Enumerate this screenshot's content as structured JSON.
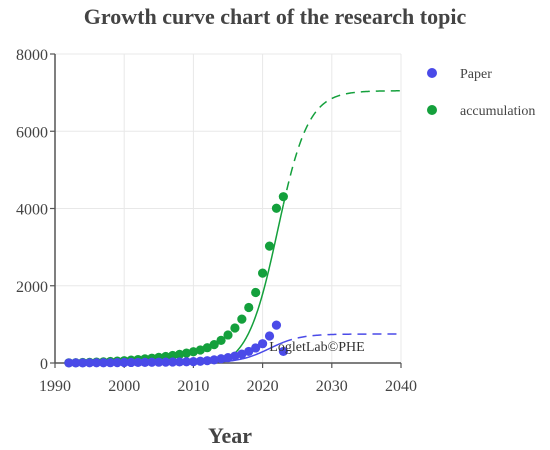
{
  "chart_data": {
    "type": "scatter",
    "title": "Growth curve chart of the research topic",
    "xlabel": "Year",
    "ylabel": "",
    "xlim": [
      1990,
      2040
    ],
    "ylim": [
      0,
      8000
    ],
    "xticks": [
      "1990",
      "2000",
      "2010",
      "2020",
      "2030",
      "2040"
    ],
    "yticks": [
      "0",
      "2000",
      "4000",
      "6000",
      "8000"
    ],
    "grid": true,
    "legend": "top-right",
    "colors": {
      "paper": "#4a4ae8",
      "accumulation": "#14a03c"
    },
    "annotation": "LogletLab©PHE",
    "series": [
      {
        "name": "Paper",
        "x": [
          1992,
          1993,
          1994,
          1995,
          1996,
          1997,
          1998,
          1999,
          2000,
          2001,
          2002,
          2003,
          2004,
          2005,
          2006,
          2007,
          2008,
          2009,
          2010,
          2011,
          2012,
          2013,
          2014,
          2015,
          2016,
          2017,
          2018,
          2019,
          2020,
          2021,
          2022,
          2023
        ],
        "y": [
          2,
          3,
          4,
          5,
          6,
          7,
          8,
          10,
          12,
          14,
          15,
          17,
          19,
          21,
          23,
          26,
          28,
          32,
          36,
          45,
          60,
          80,
          110,
          140,
          180,
          230,
          300,
          390,
          500,
          700,
          980,
          300
        ]
      },
      {
        "name": "accumulation",
        "x": [
          1992,
          1993,
          1994,
          1995,
          1996,
          1997,
          1998,
          1999,
          2000,
          2001,
          2002,
          2003,
          2004,
          2005,
          2006,
          2007,
          2008,
          2009,
          2010,
          2011,
          2012,
          2013,
          2014,
          2015,
          2016,
          2017,
          2018,
          2019,
          2020,
          2021,
          2022,
          2023
        ],
        "y": [
          5,
          8,
          12,
          17,
          23,
          30,
          38,
          48,
          60,
          74,
          89,
          106,
          125,
          146,
          169,
          195,
          223,
          255,
          291,
          336,
          396,
          476,
          586,
          726,
          906,
          1136,
          1436,
          1826,
          2326,
          3026,
          4006,
          4306
        ]
      }
    ],
    "fits": [
      {
        "series": "Paper",
        "fitted_until": 2023,
        "projected_to": 2040,
        "asymptote": 750
      },
      {
        "series": "accumulation",
        "fitted_until": 2023,
        "projected_to": 2040,
        "asymptote": 7200
      }
    ]
  }
}
